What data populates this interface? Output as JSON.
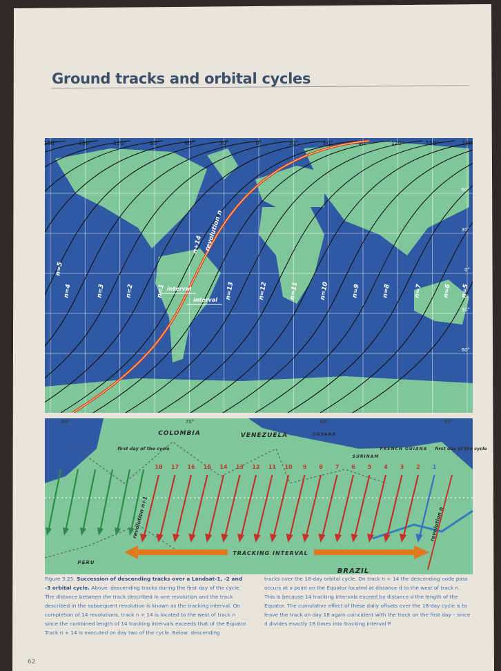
{
  "header": {
    "title": "Ground tracks and orbital cycles"
  },
  "figure_top": {
    "longitudes": [
      "180°",
      "150°",
      "120°",
      "90°",
      "60°",
      "30°",
      "0°",
      "30°",
      "60°",
      "90°",
      "120°",
      "150°",
      "180"
    ],
    "latitudes": [
      "60°",
      "30°",
      "0°",
      "30°",
      "60°"
    ],
    "tracks": [
      "n=5",
      "n=4",
      "n=3",
      "n=2",
      "n=1",
      "n=13",
      "n=12",
      "n=11",
      "n=10",
      "n=9",
      "n=8",
      "n=7",
      "n=6",
      "n=5"
    ],
    "track_n14": "n+14",
    "revolution": "revolution n",
    "intervals": [
      "interval",
      "interval"
    ]
  },
  "figure_bottom": {
    "longitudes": [
      "80°",
      "70°",
      "60°",
      "50°"
    ],
    "countries": [
      "COLOMBIA",
      "VENEZUELA",
      "GUYANA",
      "SURINAM",
      "FRENCH GUIANA",
      "PERU",
      "BRAZIL"
    ],
    "first_day": [
      "first day of the cycle",
      "first day of the cycle"
    ],
    "days": [
      "18",
      "17",
      "16",
      "15",
      "14",
      "13",
      "12",
      "11",
      "10",
      "9",
      "8",
      "7",
      "6",
      "5",
      "4",
      "3",
      "2",
      "1"
    ],
    "revolutions": [
      "revolution n+1",
      "revolution n"
    ],
    "tracking_interval": "TRACKING INTERVAL"
  },
  "caption": {
    "label": "Figure 3.25.",
    "title": "Succession of descending tracks over a Landsat-1, -2 and -3 orbital cycle.",
    "left": "Above: descending tracks during the first day of the cycle. The distance between the track described in one revolution and the track described in the subsequent revolution is known as the tracking interval. On completion of 14 revolutions, track n + 14 is located to the west of track n since the combined length of 14 tracking intervals exceeds that of the Equator. Track n + 14 is executed on day two of the cycle. Below: descending",
    "right": "tracks over the 18-day orbital cycle. On track n + 14 the descending node pass occurs at a point on the Equator located at distance d to the west of track n. This is because 14 tracking intervals exceed by distance d the length of the Equator. The cumulative effect of these daily offsets over the 18-day cycle is to leave the track on day 18 again coincident with the track on the first day – since d divides exactly 18 times into tracking interval P."
  },
  "page_number": "62"
}
